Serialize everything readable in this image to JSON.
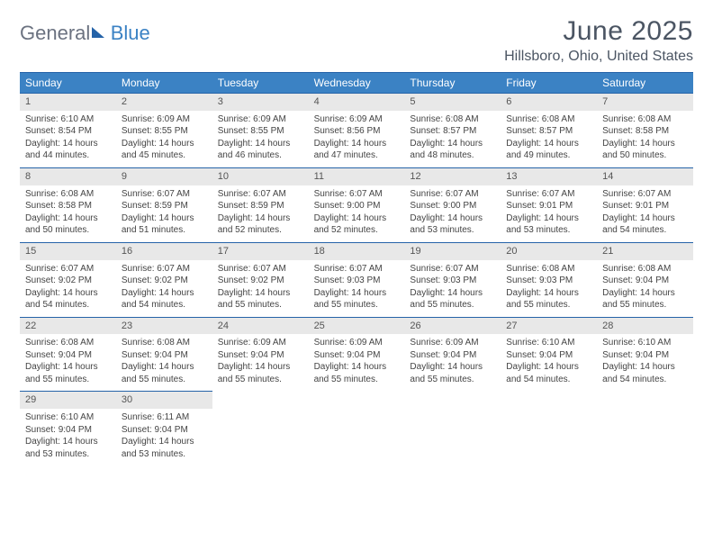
{
  "logo": {
    "part1": "General",
    "part2": "Blue"
  },
  "title": "June 2025",
  "location": "Hillsboro, Ohio, United States",
  "colors": {
    "header_bg": "#3b82c4",
    "border": "#2563a8",
    "daynum_bg": "#e8e8e8",
    "text": "#444444",
    "title_text": "#4b5563",
    "logo_gray": "#6b7280"
  },
  "typography": {
    "title_fontsize": 30,
    "location_fontsize": 16,
    "dayhdr_fontsize": 12,
    "cell_fontsize": 10
  },
  "dayHeaders": [
    "Sunday",
    "Monday",
    "Tuesday",
    "Wednesday",
    "Thursday",
    "Friday",
    "Saturday"
  ],
  "labels": {
    "sunrise": "Sunrise:",
    "sunset": "Sunset:",
    "daylight": "Daylight:"
  },
  "days": [
    {
      "n": 1,
      "sunrise": "6:10 AM",
      "sunset": "8:54 PM",
      "dl1": "14 hours",
      "dl2": "and 44 minutes."
    },
    {
      "n": 2,
      "sunrise": "6:09 AM",
      "sunset": "8:55 PM",
      "dl1": "14 hours",
      "dl2": "and 45 minutes."
    },
    {
      "n": 3,
      "sunrise": "6:09 AM",
      "sunset": "8:55 PM",
      "dl1": "14 hours",
      "dl2": "and 46 minutes."
    },
    {
      "n": 4,
      "sunrise": "6:09 AM",
      "sunset": "8:56 PM",
      "dl1": "14 hours",
      "dl2": "and 47 minutes."
    },
    {
      "n": 5,
      "sunrise": "6:08 AM",
      "sunset": "8:57 PM",
      "dl1": "14 hours",
      "dl2": "and 48 minutes."
    },
    {
      "n": 6,
      "sunrise": "6:08 AM",
      "sunset": "8:57 PM",
      "dl1": "14 hours",
      "dl2": "and 49 minutes."
    },
    {
      "n": 7,
      "sunrise": "6:08 AM",
      "sunset": "8:58 PM",
      "dl1": "14 hours",
      "dl2": "and 50 minutes."
    },
    {
      "n": 8,
      "sunrise": "6:08 AM",
      "sunset": "8:58 PM",
      "dl1": "14 hours",
      "dl2": "and 50 minutes."
    },
    {
      "n": 9,
      "sunrise": "6:07 AM",
      "sunset": "8:59 PM",
      "dl1": "14 hours",
      "dl2": "and 51 minutes."
    },
    {
      "n": 10,
      "sunrise": "6:07 AM",
      "sunset": "8:59 PM",
      "dl1": "14 hours",
      "dl2": "and 52 minutes."
    },
    {
      "n": 11,
      "sunrise": "6:07 AM",
      "sunset": "9:00 PM",
      "dl1": "14 hours",
      "dl2": "and 52 minutes."
    },
    {
      "n": 12,
      "sunrise": "6:07 AM",
      "sunset": "9:00 PM",
      "dl1": "14 hours",
      "dl2": "and 53 minutes."
    },
    {
      "n": 13,
      "sunrise": "6:07 AM",
      "sunset": "9:01 PM",
      "dl1": "14 hours",
      "dl2": "and 53 minutes."
    },
    {
      "n": 14,
      "sunrise": "6:07 AM",
      "sunset": "9:01 PM",
      "dl1": "14 hours",
      "dl2": "and 54 minutes."
    },
    {
      "n": 15,
      "sunrise": "6:07 AM",
      "sunset": "9:02 PM",
      "dl1": "14 hours",
      "dl2": "and 54 minutes."
    },
    {
      "n": 16,
      "sunrise": "6:07 AM",
      "sunset": "9:02 PM",
      "dl1": "14 hours",
      "dl2": "and 54 minutes."
    },
    {
      "n": 17,
      "sunrise": "6:07 AM",
      "sunset": "9:02 PM",
      "dl1": "14 hours",
      "dl2": "and 55 minutes."
    },
    {
      "n": 18,
      "sunrise": "6:07 AM",
      "sunset": "9:03 PM",
      "dl1": "14 hours",
      "dl2": "and 55 minutes."
    },
    {
      "n": 19,
      "sunrise": "6:07 AM",
      "sunset": "9:03 PM",
      "dl1": "14 hours",
      "dl2": "and 55 minutes."
    },
    {
      "n": 20,
      "sunrise": "6:08 AM",
      "sunset": "9:03 PM",
      "dl1": "14 hours",
      "dl2": "and 55 minutes."
    },
    {
      "n": 21,
      "sunrise": "6:08 AM",
      "sunset": "9:04 PM",
      "dl1": "14 hours",
      "dl2": "and 55 minutes."
    },
    {
      "n": 22,
      "sunrise": "6:08 AM",
      "sunset": "9:04 PM",
      "dl1": "14 hours",
      "dl2": "and 55 minutes."
    },
    {
      "n": 23,
      "sunrise": "6:08 AM",
      "sunset": "9:04 PM",
      "dl1": "14 hours",
      "dl2": "and 55 minutes."
    },
    {
      "n": 24,
      "sunrise": "6:09 AM",
      "sunset": "9:04 PM",
      "dl1": "14 hours",
      "dl2": "and 55 minutes."
    },
    {
      "n": 25,
      "sunrise": "6:09 AM",
      "sunset": "9:04 PM",
      "dl1": "14 hours",
      "dl2": "and 55 minutes."
    },
    {
      "n": 26,
      "sunrise": "6:09 AM",
      "sunset": "9:04 PM",
      "dl1": "14 hours",
      "dl2": "and 55 minutes."
    },
    {
      "n": 27,
      "sunrise": "6:10 AM",
      "sunset": "9:04 PM",
      "dl1": "14 hours",
      "dl2": "and 54 minutes."
    },
    {
      "n": 28,
      "sunrise": "6:10 AM",
      "sunset": "9:04 PM",
      "dl1": "14 hours",
      "dl2": "and 54 minutes."
    },
    {
      "n": 29,
      "sunrise": "6:10 AM",
      "sunset": "9:04 PM",
      "dl1": "14 hours",
      "dl2": "and 53 minutes."
    },
    {
      "n": 30,
      "sunrise": "6:11 AM",
      "sunset": "9:04 PM",
      "dl1": "14 hours",
      "dl2": "and 53 minutes."
    }
  ]
}
